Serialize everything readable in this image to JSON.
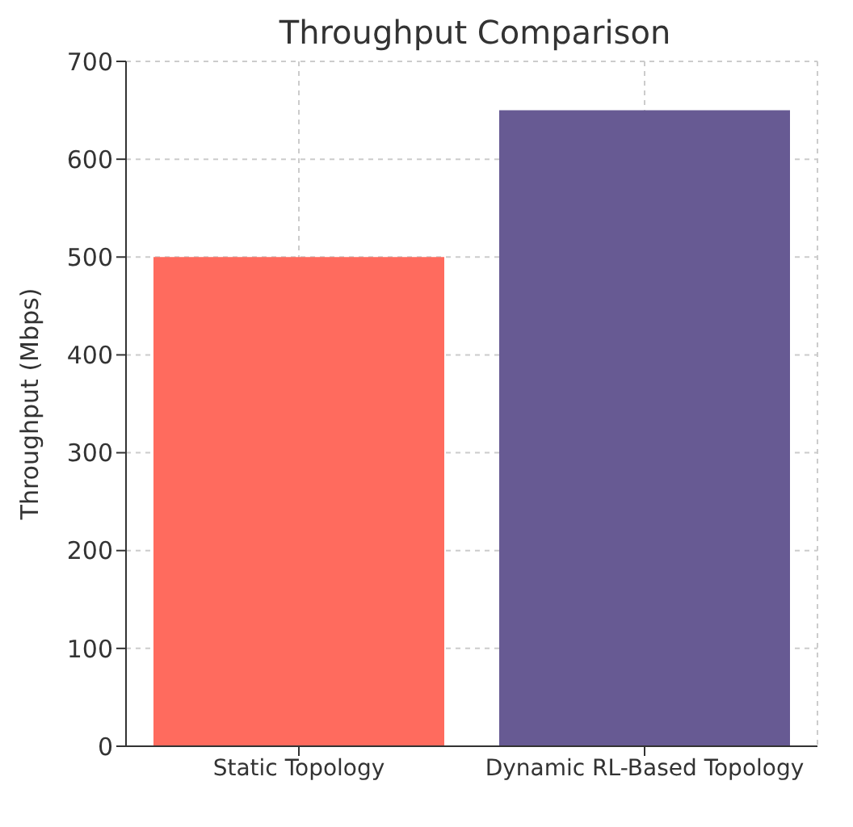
{
  "chart_data": {
    "type": "bar",
    "title": "Throughput Comparison",
    "ylabel": "Throughput (Mbps)",
    "categories": [
      "Static Topology",
      "Dynamic RL-Based Topology"
    ],
    "values": [
      500,
      650
    ],
    "colors": [
      "#ff6b5e",
      "#675a93"
    ],
    "ylim": [
      0,
      700
    ],
    "yticks": [
      0,
      100,
      200,
      300,
      400,
      500,
      600,
      700
    ],
    "grid": true
  }
}
